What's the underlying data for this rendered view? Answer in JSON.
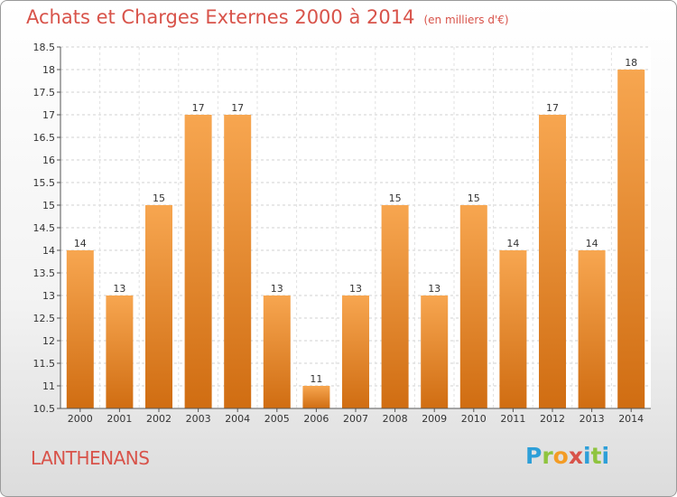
{
  "title": "Achats et Charges Externes 2000 à 2014",
  "subtitle": "(en milliers d'€)",
  "place": "LANTHENANS",
  "brand": "Proxiti",
  "colors": {
    "bar_top": "#f7a650",
    "bar_bottom": "#d06d12",
    "title": "#d8534a"
  },
  "chart_data": {
    "type": "bar",
    "categories": [
      "2000",
      "2001",
      "2002",
      "2003",
      "2004",
      "2005",
      "2006",
      "2007",
      "2008",
      "2009",
      "2010",
      "2011",
      "2012",
      "2013",
      "2014"
    ],
    "values": [
      14,
      13,
      15,
      17,
      17,
      13,
      11,
      13,
      15,
      13,
      15,
      14,
      17,
      14,
      18
    ],
    "ylim": [
      10.5,
      18.5
    ],
    "yticks": [
      "10.5",
      "11",
      "11.5",
      "12",
      "12.5",
      "13",
      "13.5",
      "14",
      "14.5",
      "15",
      "15.5",
      "16",
      "16.5",
      "17",
      "17.5",
      "18",
      "18.5"
    ],
    "grid": true
  }
}
